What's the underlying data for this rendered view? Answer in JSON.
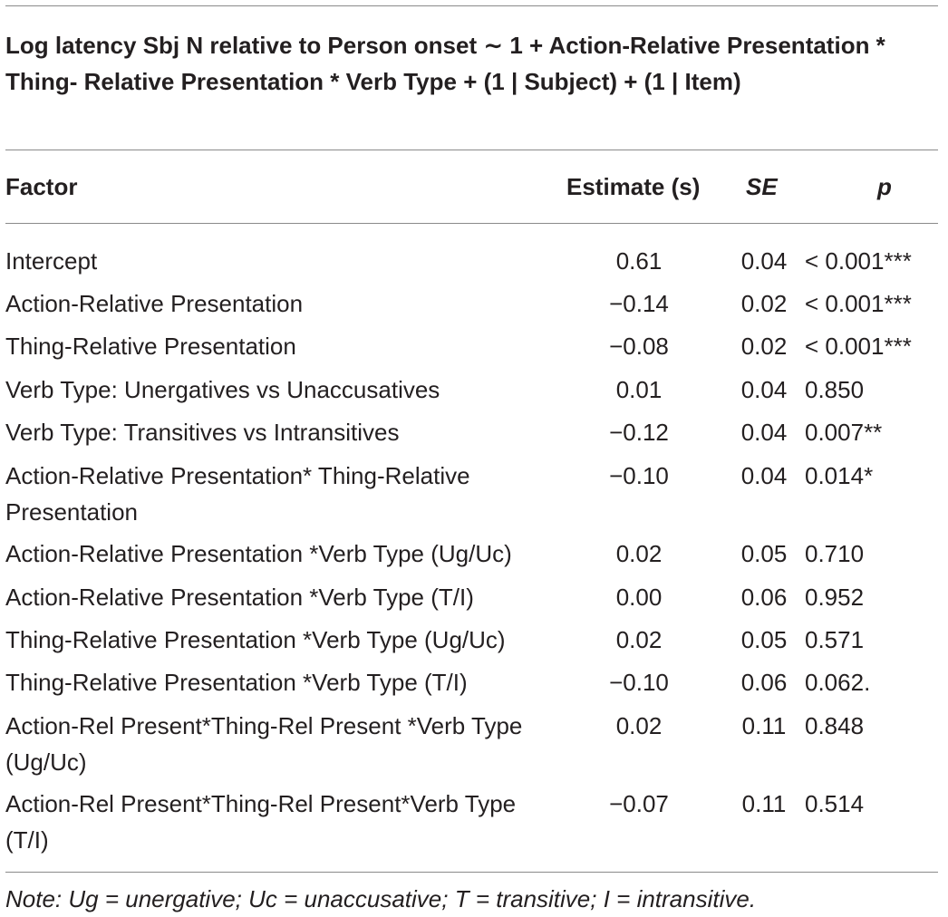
{
  "table": {
    "caption": "Log latency Sbj N relative to Person onset ∼ 1 + Action-Relative Presentation * Thing- Relative Presentation * Verb Type + (1 | Subject) + (1 | Item)",
    "headers": {
      "factor": "Factor",
      "estimate": "Estimate (s)",
      "se": "SE",
      "p": "p"
    },
    "rows": [
      {
        "factor": "Intercept",
        "estimate": "0.61",
        "se": "0.04",
        "p": "< 0.001***"
      },
      {
        "factor": "Action-Relative Presentation",
        "estimate": "−0.14",
        "se": "0.02",
        "p": "< 0.001***"
      },
      {
        "factor": "Thing-Relative Presentation",
        "estimate": "−0.08",
        "se": "0.02",
        "p": "< 0.001***"
      },
      {
        "factor": "Verb Type: Unergatives vs Unaccusatives",
        "estimate": "0.01",
        "se": "0.04",
        "p": "0.850"
      },
      {
        "factor": "Verb Type: Transitives vs Intransitives",
        "estimate": "−0.12",
        "se": "0.04",
        "p": "0.007**"
      },
      {
        "factor": "Action-Relative Presentation* Thing-Relative Presentation",
        "estimate": "−0.10",
        "se": "0.04",
        "p": "0.014*"
      },
      {
        "factor": "Action-Relative Presentation *Verb Type (Ug/Uc)",
        "estimate": "0.02",
        "se": "0.05",
        "p": "0.710"
      },
      {
        "factor": "Action-Relative Presentation *Verb Type (T/I)",
        "estimate": "0.00",
        "se": "0.06",
        "p": "0.952"
      },
      {
        "factor": "Thing-Relative Presentation *Verb Type (Ug/Uc)",
        "estimate": "0.02",
        "se": "0.05",
        "p": "0.571"
      },
      {
        "factor": "Thing-Relative Presentation *Verb Type (T/I)",
        "estimate": "−0.10",
        "se": "0.06",
        "p": "0.062."
      },
      {
        "factor": "Action-Rel Present*Thing-Rel Present *Verb Type (Ug/Uc)",
        "estimate": "0.02",
        "se": "0.11",
        "p": "0.848"
      },
      {
        "factor": "Action-Rel Present*Thing-Rel Present*Verb Type (T/I)",
        "estimate": "−0.07",
        "se": "0.11",
        "p": "0.514"
      }
    ],
    "note": "Note: Ug = unergative; Uc = unaccusative; T = transitive; I = intransitive."
  }
}
